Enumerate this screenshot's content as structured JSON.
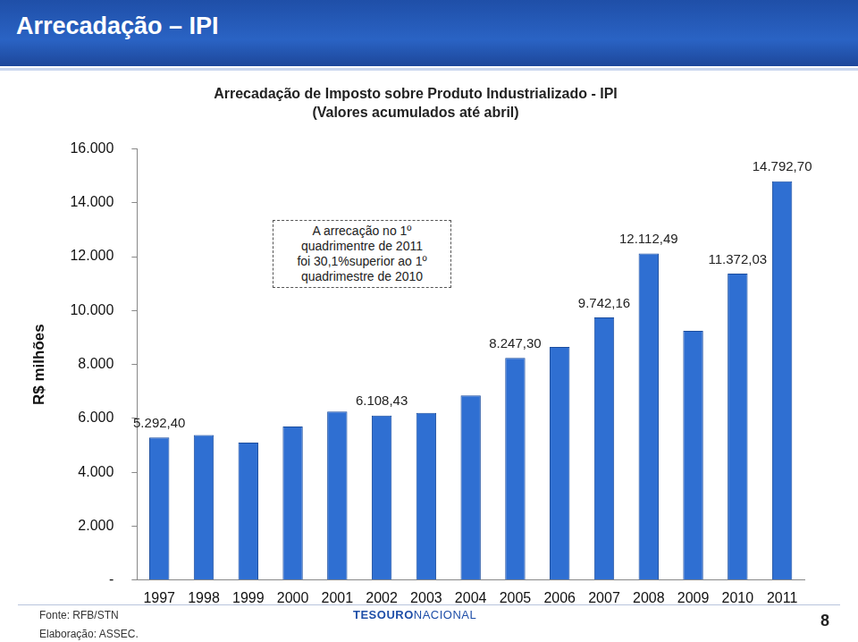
{
  "header": "Arrecadação – IPI",
  "chart_data": {
    "type": "bar",
    "title": "Arrecadação de Imposto sobre Produto Industrializado - IPI",
    "subtitle": "(Valores acumulados até abril)",
    "y_label": "R$ milhões",
    "categories": [
      "1997",
      "1998",
      "1999",
      "2000",
      "2001",
      "2002",
      "2003",
      "2004",
      "2005",
      "2006",
      "2007",
      "2008",
      "2009",
      "2010",
      "2011"
    ],
    "values": [
      5292.4,
      5380,
      5100,
      5700,
      6250,
      6108.43,
      6200,
      6850,
      8247.3,
      8650,
      9742.16,
      12112.49,
      9250,
      11372.03,
      14792.7
    ],
    "value_labels": [
      "5.292,40",
      null,
      null,
      null,
      null,
      "6.108,43",
      null,
      null,
      "8.247,30",
      null,
      "9.742,16",
      "12.112,49",
      null,
      "11.372,03",
      "14.792,70"
    ],
    "data_labels": true,
    "color": "#2f6fd2",
    "ylim": [
      0,
      16000
    ],
    "yticks": [
      {
        "value": 0,
        "label": "-"
      },
      {
        "value": 2000,
        "label": "2.000"
      },
      {
        "value": 4000,
        "label": "4.000"
      },
      {
        "value": 6000,
        "label": "6.000"
      },
      {
        "value": 8000,
        "label": "8.000"
      },
      {
        "value": 10000,
        "label": "10.000"
      },
      {
        "value": 12000,
        "label": "12.000"
      },
      {
        "value": 14000,
        "label": "14.000"
      },
      {
        "value": 16000,
        "label": "16.000"
      }
    ],
    "grid": false,
    "annotation": [
      "A arrecação no 1º",
      "quadrimentre de 2011",
      "foi 30,1%superior ao 1º",
      "quadrimestre de 2010"
    ]
  },
  "footer": {
    "source": "Fonte:  RFB/STN",
    "credit": "Elaboração: ASSEC.",
    "logo": [
      "TESOURO",
      "NACIONAL"
    ],
    "page": "8"
  }
}
